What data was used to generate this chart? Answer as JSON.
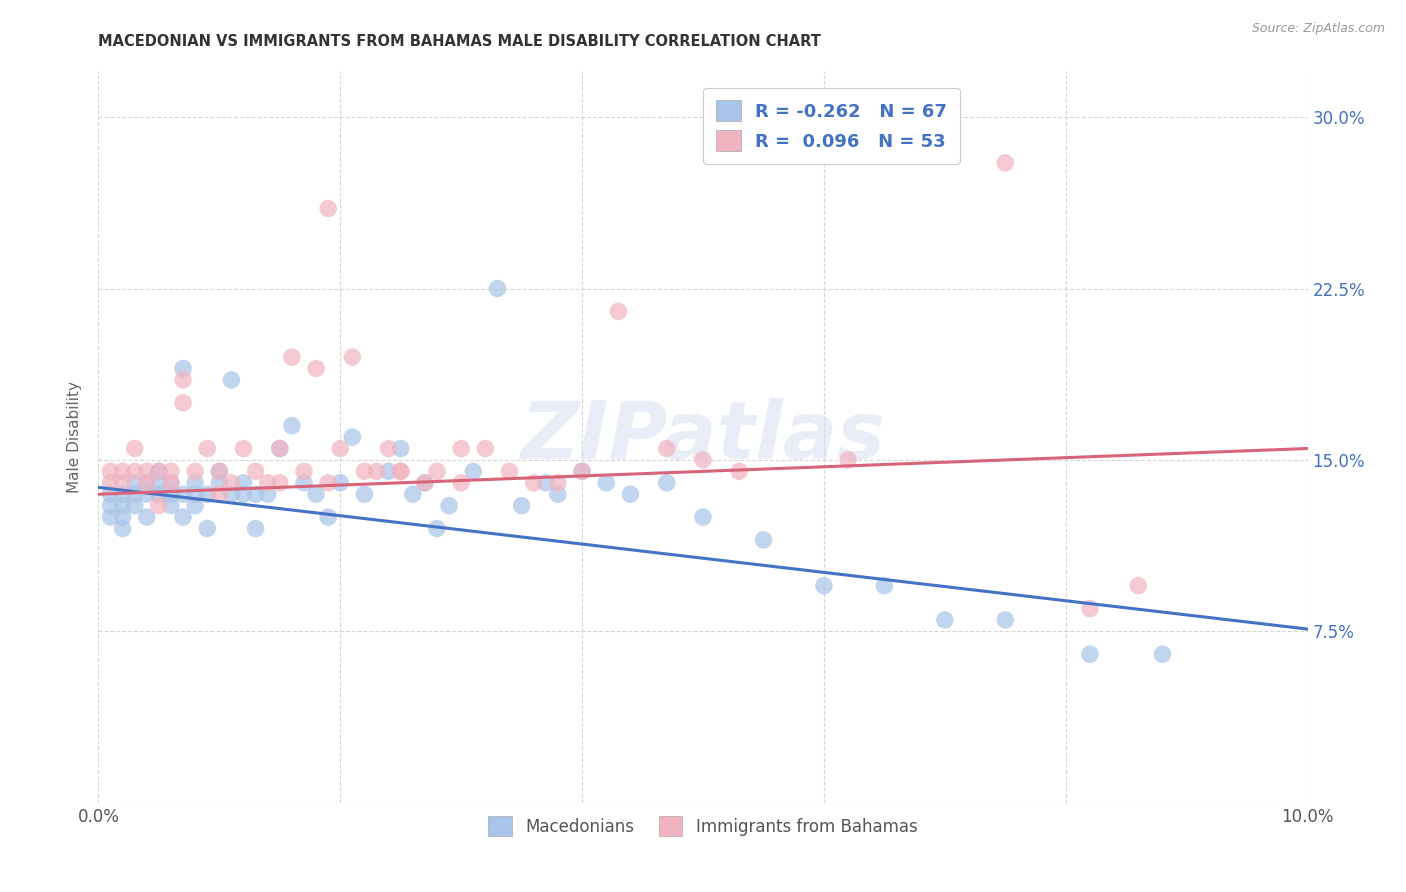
{
  "title": "MACEDONIAN VS IMMIGRANTS FROM BAHAMAS MALE DISABILITY CORRELATION CHART",
  "source": "Source: ZipAtlas.com",
  "ylabel": "Male Disability",
  "x_min": 0.0,
  "x_max": 0.1,
  "y_min": 0.0,
  "y_max": 0.32,
  "x_ticks": [
    0.0,
    0.02,
    0.04,
    0.06,
    0.08,
    0.1
  ],
  "x_tick_labels": [
    "0.0%",
    "",
    "",
    "",
    "",
    "10.0%"
  ],
  "y_ticks": [
    0.0,
    0.075,
    0.15,
    0.225,
    0.3
  ],
  "y_tick_labels": [
    "",
    "7.5%",
    "15.0%",
    "22.5%",
    "30.0%"
  ],
  "blue_color": "#a8c4e8",
  "pink_color": "#f2b3c0",
  "blue_line_color": "#4472c4",
  "pink_line_color": "#d9647a",
  "legend_R_blue": "-0.262",
  "legend_N_blue": "67",
  "legend_R_pink": "0.096",
  "legend_N_pink": "53",
  "blue_label": "Macedonians",
  "pink_label": "Immigrants from Bahamas",
  "watermark": "ZIPatlas",
  "blue_scatter_x": [
    0.001,
    0.001,
    0.001,
    0.002,
    0.002,
    0.002,
    0.002,
    0.003,
    0.003,
    0.003,
    0.004,
    0.004,
    0.004,
    0.005,
    0.005,
    0.005,
    0.006,
    0.006,
    0.006,
    0.007,
    0.007,
    0.007,
    0.008,
    0.008,
    0.008,
    0.009,
    0.009,
    0.01,
    0.01,
    0.011,
    0.011,
    0.012,
    0.012,
    0.013,
    0.013,
    0.014,
    0.015,
    0.016,
    0.017,
    0.018,
    0.019,
    0.02,
    0.021,
    0.022,
    0.024,
    0.025,
    0.026,
    0.027,
    0.028,
    0.029,
    0.031,
    0.033,
    0.035,
    0.037,
    0.038,
    0.04,
    0.042,
    0.044,
    0.047,
    0.05,
    0.055,
    0.06,
    0.065,
    0.07,
    0.075,
    0.082,
    0.088
  ],
  "blue_scatter_y": [
    0.135,
    0.125,
    0.13,
    0.13,
    0.135,
    0.12,
    0.125,
    0.14,
    0.135,
    0.13,
    0.125,
    0.14,
    0.135,
    0.14,
    0.135,
    0.145,
    0.135,
    0.14,
    0.13,
    0.125,
    0.135,
    0.19,
    0.13,
    0.135,
    0.14,
    0.12,
    0.135,
    0.145,
    0.14,
    0.135,
    0.185,
    0.14,
    0.135,
    0.12,
    0.135,
    0.135,
    0.155,
    0.165,
    0.14,
    0.135,
    0.125,
    0.14,
    0.16,
    0.135,
    0.145,
    0.155,
    0.135,
    0.14,
    0.12,
    0.13,
    0.145,
    0.225,
    0.13,
    0.14,
    0.135,
    0.145,
    0.14,
    0.135,
    0.14,
    0.125,
    0.115,
    0.095,
    0.095,
    0.08,
    0.08,
    0.065,
    0.065
  ],
  "pink_scatter_x": [
    0.001,
    0.001,
    0.002,
    0.002,
    0.003,
    0.003,
    0.004,
    0.004,
    0.005,
    0.005,
    0.006,
    0.006,
    0.007,
    0.007,
    0.008,
    0.009,
    0.01,
    0.01,
    0.011,
    0.012,
    0.013,
    0.014,
    0.015,
    0.015,
    0.016,
    0.017,
    0.018,
    0.019,
    0.02,
    0.021,
    0.022,
    0.023,
    0.024,
    0.025,
    0.027,
    0.028,
    0.03,
    0.032,
    0.034,
    0.036,
    0.038,
    0.04,
    0.043,
    0.047,
    0.05,
    0.053,
    0.062,
    0.075,
    0.082,
    0.086,
    0.019,
    0.025,
    0.03
  ],
  "pink_scatter_y": [
    0.145,
    0.14,
    0.14,
    0.145,
    0.155,
    0.145,
    0.14,
    0.145,
    0.13,
    0.145,
    0.14,
    0.145,
    0.175,
    0.185,
    0.145,
    0.155,
    0.135,
    0.145,
    0.14,
    0.155,
    0.145,
    0.14,
    0.14,
    0.155,
    0.195,
    0.145,
    0.19,
    0.14,
    0.155,
    0.195,
    0.145,
    0.145,
    0.155,
    0.145,
    0.14,
    0.145,
    0.14,
    0.155,
    0.145,
    0.14,
    0.14,
    0.145,
    0.215,
    0.155,
    0.15,
    0.145,
    0.15,
    0.28,
    0.085,
    0.095,
    0.26,
    0.145,
    0.155
  ],
  "blue_trend_x": [
    0.0,
    0.1
  ],
  "blue_trend_y": [
    0.138,
    0.076
  ],
  "pink_trend_x": [
    0.0,
    0.1
  ],
  "pink_trend_y": [
    0.135,
    0.155
  ]
}
